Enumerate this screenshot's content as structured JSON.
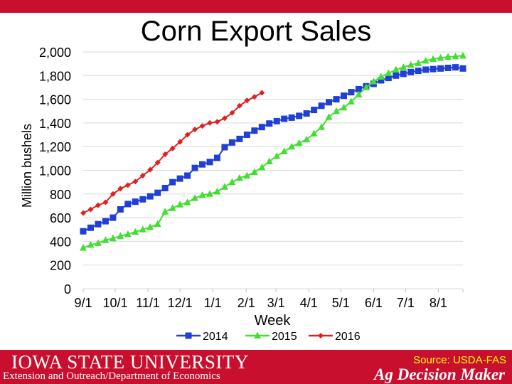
{
  "slide": {
    "brand_primary": "ISU",
    "brand_secondary": "Iowa State University",
    "footer_line": "Extension and Outreach/Department of Economics",
    "source": "Source: USDA-FAS",
    "program": "Ag Decision Maker",
    "accent_color": "#c8102e"
  },
  "chart_data": {
    "type": "line",
    "title": "Corn Export Sales",
    "xlabel": "Week",
    "ylabel": "Million bushels",
    "ylim": [
      0,
      2000
    ],
    "y_ticks": [
      "0",
      "200",
      "400",
      "600",
      "800",
      "1,000",
      "1,200",
      "1,400",
      "1,600",
      "1,800",
      "2,000"
    ],
    "x_tick_labels": [
      "9/1",
      "10/1",
      "11/1",
      "12/1",
      "1/1",
      "2/1",
      "3/1",
      "4/1",
      "5/1",
      "6/1",
      "7/1",
      "8/1"
    ],
    "x_tick_weeks": [
      0,
      4.3,
      8.7,
      13,
      17.4,
      21.9,
      25.9,
      30.3,
      34.6,
      39,
      43.3,
      47.7
    ],
    "grid": "horizontal",
    "legend_position": "bottom",
    "series": [
      {
        "name": "2014",
        "color": "#1f3fd6",
        "marker": "square",
        "values": [
          485,
          515,
          545,
          570,
          600,
          670,
          715,
          735,
          755,
          780,
          810,
          850,
          900,
          930,
          955,
          1020,
          1050,
          1070,
          1105,
          1195,
          1235,
          1265,
          1300,
          1335,
          1365,
          1395,
          1415,
          1435,
          1445,
          1460,
          1480,
          1510,
          1545,
          1575,
          1600,
          1630,
          1660,
          1685,
          1710,
          1730,
          1760,
          1780,
          1800,
          1815,
          1830,
          1840,
          1850,
          1855,
          1860,
          1865,
          1870,
          1860
        ]
      },
      {
        "name": "2015",
        "color": "#44dd33",
        "marker": "triangle",
        "values": [
          345,
          370,
          385,
          410,
          425,
          445,
          460,
          480,
          500,
          520,
          545,
          650,
          680,
          710,
          730,
          765,
          790,
          800,
          820,
          860,
          900,
          935,
          955,
          985,
          1025,
          1075,
          1120,
          1160,
          1200,
          1230,
          1260,
          1310,
          1365,
          1450,
          1500,
          1530,
          1580,
          1640,
          1700,
          1750,
          1790,
          1820,
          1850,
          1870,
          1890,
          1905,
          1925,
          1940,
          1950,
          1958,
          1962,
          1968
        ]
      },
      {
        "name": "2016",
        "color": "#dd2222",
        "marker": "diamond",
        "values": [
          640,
          670,
          705,
          730,
          800,
          845,
          875,
          905,
          955,
          1005,
          1065,
          1135,
          1185,
          1240,
          1300,
          1345,
          1375,
          1400,
          1410,
          1440,
          1485,
          1545,
          1590,
          1620,
          1655
        ]
      }
    ]
  }
}
